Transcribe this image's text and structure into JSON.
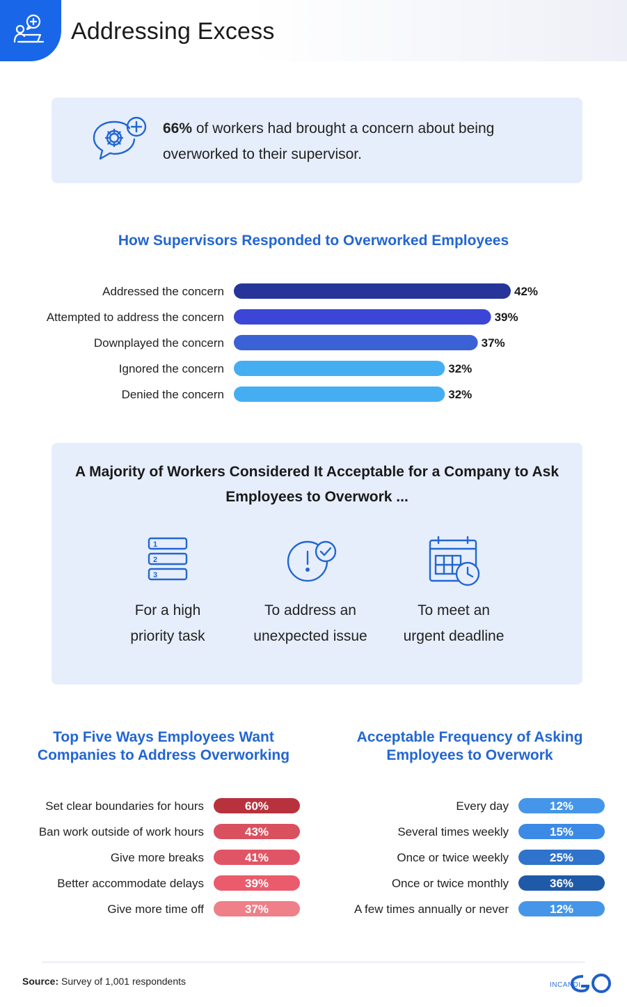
{
  "header": {
    "title": "Addressing Excess"
  },
  "stat": {
    "highlight": "66%",
    "text": " of workers had brought a concern about being overworked to their supervisor."
  },
  "colors": {
    "brand_blue": "#1967e8",
    "title_blue": "#2366d1",
    "panel": "#e6eefc"
  },
  "chart_data": [
    {
      "type": "bar",
      "orientation": "horizontal",
      "title": "How Supervisors Responded to Overworked Employees",
      "categories": [
        "Addressed the concern",
        "Attempted to address the concern",
        "Downplayed the concern",
        "Ignored the concern",
        "Denied the concern"
      ],
      "values": [
        42,
        39,
        37,
        32,
        32
      ],
      "value_labels": [
        "42%",
        "39%",
        "37%",
        "32%",
        "32%"
      ],
      "colors": [
        "#27359a",
        "#3c46d6",
        "#3a62d4",
        "#45aef2",
        "#45aef2"
      ],
      "xlim": [
        0,
        55
      ]
    },
    {
      "type": "bar",
      "orientation": "horizontal",
      "title": "Top Five Ways Employees Want Companies to Address Overworking",
      "categories": [
        "Set clear boundaries for hours",
        "Ban work outside of work hours",
        "Give more breaks",
        "Better accommodate delays",
        "Give more time off"
      ],
      "values": [
        60,
        43,
        41,
        39,
        37
      ],
      "value_labels": [
        "60%",
        "43%",
        "41%",
        "39%",
        "37%"
      ],
      "colors": [
        "#b8323e",
        "#d9515f",
        "#e05565",
        "#ea5c6c",
        "#ef7f88"
      ]
    },
    {
      "type": "bar",
      "orientation": "horizontal",
      "title": "Acceptable Frequency of Asking Employees to Overwork",
      "categories": [
        "Every day",
        "Several times weekly",
        "Once or twice weekly",
        "Once or twice monthly",
        "A few times annually or never"
      ],
      "values": [
        12,
        15,
        25,
        36,
        12
      ],
      "value_labels": [
        "12%",
        "15%",
        "25%",
        "36%",
        "12%"
      ],
      "colors": [
        "#4596e8",
        "#3d8ae6",
        "#2f73cc",
        "#1f5aa8",
        "#4596e8"
      ]
    }
  ],
  "acceptable": {
    "title_line1": "A Majority of Workers Considered It Acceptable for a Company to Ask",
    "title_line2": "Employees to Overwork ...",
    "reasons": [
      {
        "line1": "For a high",
        "line2": "priority task",
        "icon": "numbered-list-icon"
      },
      {
        "line1": "To address an",
        "line2": "unexpected issue",
        "icon": "alert-check-icon"
      },
      {
        "line1": "To meet an",
        "line2": "urgent deadline",
        "icon": "calendar-clock-icon"
      }
    ],
    "list_numbers": [
      "1",
      "2",
      "3"
    ]
  },
  "footer": {
    "source_label": "Source:",
    "source_text": " Survey of 1,001 respondents",
    "logo_text": "INCANDI"
  }
}
